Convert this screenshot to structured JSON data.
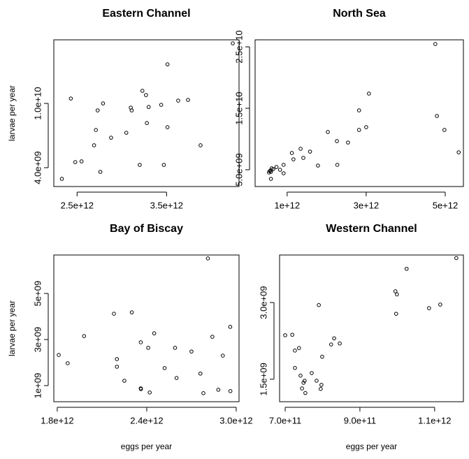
{
  "chart_data": [
    {
      "type": "scatter",
      "title": "Eastern Channel",
      "y_label": "larvae per year",
      "x": [
        2330000000000.0,
        2430000000000.0,
        2480000000000.0,
        2550000000000.0,
        2690000000000.0,
        2710000000000.0,
        2730000000000.0,
        2760000000000.0,
        2790000000000.0,
        2880000000000.0,
        3050000000000.0,
        3100000000000.0,
        3110000000000.0,
        3200000000000.0,
        3230000000000.0,
        3270000000000.0,
        3280000000000.0,
        3300000000000.0,
        3440000000000.0,
        3470000000000.0,
        3510000000000.0,
        3510000000000.0,
        3630000000000.0,
        3740000000000.0,
        3880000000000.0,
        4240000000000.0
      ],
      "values": [
        2960000000.0,
        10460000000.0,
        4520000000.0,
        4590000000.0,
        6090000000.0,
        7520000000.0,
        9350000000.0,
        3610000000.0,
        10000000000.0,
        6800000000.0,
        7260000000.0,
        9610000000.0,
        9350000000.0,
        4260000000.0,
        11180000000.0,
        10780000000.0,
        8170000000.0,
        9670000000.0,
        9870000000.0,
        4260000000.0,
        13650000000.0,
        7780000000.0,
        10260000000.0,
        10330000000.0,
        6090000000.0,
        15610000000.0
      ],
      "xlim": [
        2240000000000.0,
        4310000000000.0
      ],
      "ylim": [
        2240000000.0,
        15940000000.0
      ],
      "xticks": [
        {
          "value": 2500000000000.0,
          "label": "2.5e+12"
        },
        {
          "value": 3500000000000.0,
          "label": "3.5e+12"
        }
      ],
      "yticks": [
        {
          "value": 4000000000.0,
          "label": "4.0e+09"
        },
        {
          "value": 10000000000.0,
          "label": "1.0e+10"
        }
      ]
    },
    {
      "type": "scatter",
      "title": "North Sea",
      "x": [
        540000000000.0,
        580000000000.0,
        590000000000.0,
        610000000000.0,
        560000000000.0,
        650000000000.0,
        590000000000.0,
        730000000000.0,
        820000000000.0,
        910000000000.0,
        910000000000.0,
        1120000000000.0,
        1160000000000.0,
        1340000000000.0,
        1410000000000.0,
        1580000000000.0,
        1780000000000.0,
        2030000000000.0,
        2260000000000.0,
        2270000000000.0,
        2540000000000.0,
        2820000000000.0,
        2820000000000.0,
        3000000000000.0,
        3070000000000.0,
        4750000000000.0,
        4790000000000.0,
        4980000000000.0,
        5340000000000.0
      ],
      "values": [
        4550000000.0,
        4890000000.0,
        4660000000.0,
        5230000000.0,
        4770000000.0,
        5110000000.0,
        3520000000.0,
        5450000000.0,
        5000000000.0,
        5800000000.0,
        4430000000.0,
        7730000000.0,
        6700000000.0,
        8410000000.0,
        6930000000.0,
        7950000000.0,
        5680000000.0,
        11140000000.0,
        9660000000.0,
        5800000000.0,
        9430000000.0,
        11480000000.0,
        14660000000.0,
        11930000000.0,
        17390000000.0,
        25450000000.0,
        13750000000.0,
        11480000000.0,
        7840000000.0
      ],
      "xlim": [
        190000000000.0,
        5460000000000.0
      ],
      "ylim": [
        2270000000.0,
        26140000000.0
      ],
      "xticks": [
        {
          "value": 1000000000000.0,
          "label": "1e+12"
        },
        {
          "value": 3000000000000.0,
          "label": "3e+12"
        },
        {
          "value": 5000000000000.0,
          "label": "5e+12"
        }
      ],
      "yticks": [
        {
          "value": 5000000000.0,
          "label": "5.0e+09"
        },
        {
          "value": 15000000000.0,
          "label": "1.5e+10"
        },
        {
          "value": 25000000000.0,
          "label": "2.5e+10"
        }
      ]
    },
    {
      "type": "scatter",
      "title": "Bay of Biscay",
      "y_label": "larvae per year",
      "x_label": "eggs per year",
      "x": [
        1810000000000.0,
        1870000000000.0,
        1980000000000.0,
        2180000000000.0,
        2200000000000.0,
        2200000000000.0,
        2250000000000.0,
        2300000000000.0,
        2360000000000.0,
        2360000000000.0,
        2361000000000.0,
        2410000000000.0,
        2420000000000.0,
        2450000000000.0,
        2520000000000.0,
        2590000000000.0,
        2600000000000.0,
        2700000000000.0,
        2760000000000.0,
        2780000000000.0,
        2810000000000.0,
        2840000000000.0,
        2880000000000.0,
        2910000000000.0,
        2960000000000.0,
        2961000000000.0
      ],
      "values": [
        2330000000.0,
        1970000000.0,
        3150000000.0,
        4120000000.0,
        2150000000.0,
        1820000000.0,
        1210000000.0,
        4180000000.0,
        2880000000.0,
        880000000.0,
        850000000.0,
        2640000000.0,
        700000000.0,
        3270000000.0,
        1760000000.0,
        2640000000.0,
        1330000000.0,
        2480000000.0,
        1520000000.0,
        670000000.0,
        6520000000.0,
        3120000000.0,
        820000000.0,
        2300000000.0,
        3550000000.0,
        760000000.0
      ],
      "xlim": [
        1777000000000.0,
        3019000000000.0
      ],
      "ylim": [
        300000000.0,
        6670000000.0
      ],
      "xticks": [
        {
          "value": 1800000000000.0,
          "label": "1.8e+12"
        },
        {
          "value": 2400000000000.0,
          "label": "2.4e+12"
        },
        {
          "value": 3000000000000.0,
          "label": "3.0e+12"
        }
      ],
      "yticks": [
        {
          "value": 1000000000.0,
          "label": "1e+09"
        },
        {
          "value": 3000000000.0,
          "label": "3e+09"
        },
        {
          "value": 5000000000.0,
          "label": "5e+09"
        }
      ]
    },
    {
      "type": "scatter",
      "title": "Western Channel",
      "x_label": "eggs per year",
      "x": [
        700000000000.0,
        719000000000.0,
        726000000000.0,
        737000000000.0,
        726100000000.0,
        741000000000.0,
        745000000000.0,
        749000000000.0,
        752000000000.0,
        754000000000.0,
        771000000000.0,
        784000000000.0,
        790000000000.0,
        795000000000.0,
        797000000000.0,
        799000000000.0,
        823000000000.0,
        831000000000.0,
        846000000000.0,
        995000000000.0,
        997000000000.0,
        999000000000.0,
        1025000000000.0,
        1085000000000.0,
        1115000000000.0,
        1158000000000.0
      ],
      "values": [
        2360000000.0,
        2370000000.0,
        2060000000.0,
        2110000000.0,
        1720000000.0,
        1570000000.0,
        1320000000.0,
        1430000000.0,
        1470000000.0,
        1230000000.0,
        1620000000.0,
        1471000000.0,
        2950000000.0,
        1310000000.0,
        1390000000.0,
        1940000000.0,
        2180000000.0,
        2300000000.0,
        2200000000.0,
        3220000000.0,
        2780000000.0,
        3160000000.0,
        3660000000.0,
        2890000000.0,
        2960000000.0,
        3870000000.0
      ],
      "xlim": [
        685000000000.0,
        1177000000000.0
      ],
      "ylim": [
        1060000000.0,
        3930000000.0
      ],
      "xticks": [
        {
          "value": 700000000000.0,
          "label": "7.0e+11"
        },
        {
          "value": 900000000000.0,
          "label": "9.0e+11"
        },
        {
          "value": 1100000000000.0,
          "label": "1.1e+12"
        }
      ],
      "yticks": [
        {
          "value": 1500000000.0,
          "label": "1.5e+09"
        },
        {
          "value": 3000000000.0,
          "label": "3.0e+09"
        }
      ]
    }
  ]
}
